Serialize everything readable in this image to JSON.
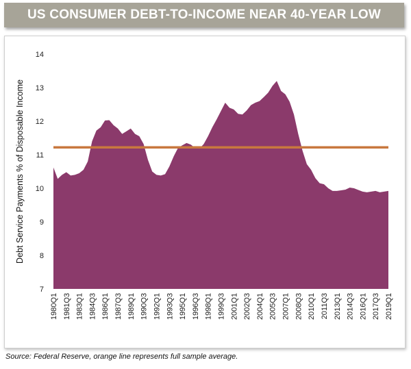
{
  "header": {
    "title": "US CONSUMER DEBT-TO-INCOME NEAR 40-YEAR LOW"
  },
  "footer": {
    "source": "Source: Federal Reserve, orange line represents full sample average."
  },
  "colors": {
    "area": "#8b3a6b",
    "average_line": "#c8783e",
    "title_bg": "#a7a498"
  },
  "chart_data": {
    "type": "area",
    "title": "US CONSUMER DEBT-TO-INCOME NEAR 40-YEAR LOW",
    "xlabel": "",
    "ylabel": "Debt Service Payments % of Disposable Income",
    "ylim": [
      7,
      14
    ],
    "yticks": [
      7,
      8,
      9,
      10,
      11,
      12,
      13,
      14
    ],
    "xticks": [
      "1980Q1",
      "1981Q3",
      "1983Q1",
      "1984Q3",
      "1986Q1",
      "1987Q3",
      "1989Q1",
      "1990Q3",
      "1992Q1",
      "1993Q3",
      "1995Q1",
      "1996Q3",
      "1998Q1",
      "1999Q3",
      "2001Q1",
      "2002Q3",
      "2004Q1",
      "2005Q3",
      "2007Q1",
      "2008Q3",
      "2010Q1",
      "2011Q3",
      "2013Q1",
      "2014Q3",
      "2016Q1",
      "2017Q3",
      "2019Q1"
    ],
    "grid": false,
    "average": 11.22,
    "series": [
      {
        "x": [
          "1980Q1",
          "1980Q3",
          "1981Q1",
          "1981Q3",
          "1982Q1",
          "1982Q3",
          "1983Q1",
          "1983Q3",
          "1984Q1",
          "1984Q3",
          "1985Q1",
          "1985Q3",
          "1986Q1",
          "1986Q3",
          "1987Q1",
          "1987Q3",
          "1988Q1",
          "1988Q3",
          "1989Q1",
          "1989Q3",
          "1990Q1",
          "1990Q3",
          "1991Q1",
          "1991Q3",
          "1992Q1",
          "1992Q3",
          "1993Q1",
          "1993Q3",
          "1994Q1",
          "1994Q3",
          "1995Q1",
          "1995Q3",
          "1996Q1",
          "1996Q3",
          "1997Q1",
          "1997Q3",
          "1998Q1",
          "1998Q3",
          "1999Q1",
          "1999Q3",
          "2000Q1",
          "2000Q3",
          "2001Q1",
          "2001Q3",
          "2002Q1",
          "2002Q3",
          "2003Q1",
          "2003Q3",
          "2004Q1",
          "2004Q3",
          "2005Q1",
          "2005Q3",
          "2006Q1",
          "2006Q3",
          "2007Q1",
          "2007Q3",
          "2008Q1",
          "2008Q3",
          "2009Q1",
          "2009Q3",
          "2010Q1",
          "2010Q3",
          "2011Q1",
          "2011Q3",
          "2012Q1",
          "2012Q3",
          "2013Q1",
          "2013Q3",
          "2014Q1",
          "2014Q3",
          "2015Q1",
          "2015Q3",
          "2016Q1",
          "2016Q3",
          "2017Q1",
          "2017Q3",
          "2018Q1",
          "2018Q3",
          "2019Q1"
        ],
        "values": [
          10.62,
          10.28,
          10.4,
          10.48,
          10.38,
          10.4,
          10.45,
          10.55,
          10.8,
          11.4,
          11.72,
          11.82,
          12.02,
          12.03,
          11.88,
          11.78,
          11.62,
          11.7,
          11.78,
          11.62,
          11.55,
          11.32,
          10.85,
          10.5,
          10.4,
          10.38,
          10.42,
          10.65,
          10.95,
          11.2,
          11.28,
          11.35,
          11.3,
          11.2,
          11.18,
          11.32,
          11.55,
          11.82,
          12.05,
          12.3,
          12.55,
          12.4,
          12.35,
          12.22,
          12.2,
          12.32,
          12.48,
          12.55,
          12.6,
          12.72,
          12.85,
          13.05,
          13.2,
          12.9,
          12.8,
          12.58,
          12.2,
          11.62,
          11.12,
          10.72,
          10.55,
          10.3,
          10.15,
          10.12,
          10.0,
          9.92,
          9.92,
          9.94,
          9.96,
          10.02,
          10.0,
          9.95,
          9.9,
          9.88,
          9.9,
          9.92,
          9.88,
          9.9,
          9.92
        ]
      }
    ]
  }
}
